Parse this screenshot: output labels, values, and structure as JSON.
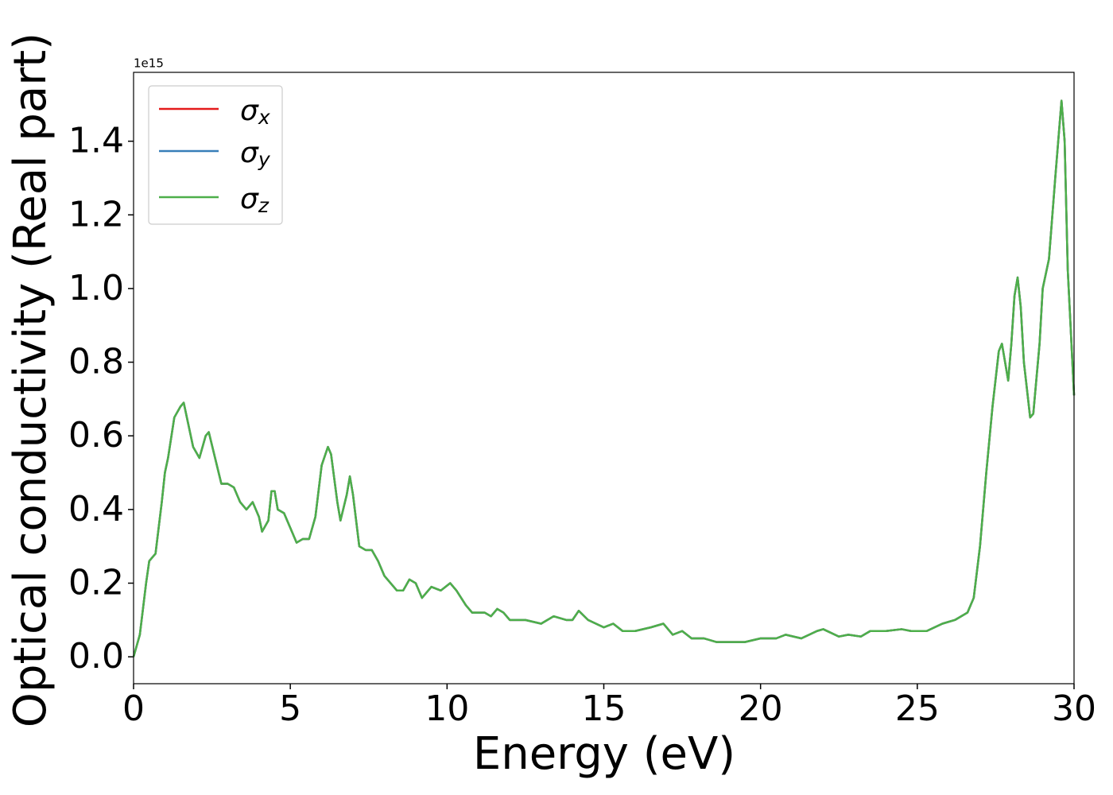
{
  "chart_data": {
    "type": "line",
    "xlabel": "Energy (eV)",
    "ylabel": "Optical conductivity (Real part)",
    "y_offset_label": "1e15",
    "xlim": [
      0,
      30
    ],
    "ylim": [
      -0.073,
      1.587
    ],
    "xticks": [
      0,
      5,
      10,
      15,
      20,
      25,
      30
    ],
    "yticks": [
      {
        "value": 0,
        "label": "0.0"
      },
      0.2,
      0.4,
      0.6,
      0.8,
      {
        "value": 1,
        "label": "1.0"
      },
      1.2,
      1.4
    ],
    "legend": "upper left",
    "x": [
      0,
      0.2,
      0.4,
      0.5,
      0.7,
      0.9,
      1.0,
      1.1,
      1.3,
      1.5,
      1.6,
      1.7,
      1.9,
      2.1,
      2.3,
      2.4,
      2.6,
      2.8,
      3.0,
      3.2,
      3.4,
      3.6,
      3.8,
      4.0,
      4.1,
      4.3,
      4.4,
      4.5,
      4.6,
      4.8,
      5.0,
      5.2,
      5.4,
      5.6,
      5.8,
      6.0,
      6.2,
      6.3,
      6.5,
      6.6,
      6.8,
      6.9,
      7.0,
      7.2,
      7.4,
      7.6,
      7.8,
      8.0,
      8.4,
      8.6,
      8.8,
      9.0,
      9.2,
      9.5,
      9.8,
      10.1,
      10.3,
      10.6,
      10.8,
      11.2,
      11.4,
      11.6,
      11.8,
      12.0,
      12.5,
      13.0,
      13.4,
      13.8,
      14.0,
      14.2,
      14.5,
      15.0,
      15.3,
      15.6,
      16.0,
      16.5,
      16.9,
      17.2,
      17.5,
      17.8,
      18.2,
      18.6,
      19.2,
      19.5,
      20.0,
      20.5,
      20.8,
      21.3,
      21.8,
      22.0,
      22.5,
      22.8,
      23.2,
      23.5,
      24.0,
      24.5,
      24.8,
      25.3,
      25.8,
      26.2,
      26.6,
      26.8,
      27.0,
      27.2,
      27.4,
      27.6,
      27.7,
      27.8,
      27.9,
      28.0,
      28.1,
      28.2,
      28.3,
      28.4,
      28.6,
      28.7,
      28.9,
      29.0,
      29.2,
      29.4,
      29.6,
      29.7,
      29.8,
      30.0
    ],
    "series": [
      {
        "name": "σx",
        "color": "#e41a1c",
        "values": [
          0,
          0.06,
          0.2,
          0.26,
          0.28,
          0.42,
          0.5,
          0.54,
          0.65,
          0.68,
          0.69,
          0.65,
          0.57,
          0.54,
          0.6,
          0.61,
          0.54,
          0.47,
          0.47,
          0.46,
          0.42,
          0.4,
          0.42,
          0.38,
          0.34,
          0.37,
          0.45,
          0.45,
          0.4,
          0.39,
          0.35,
          0.31,
          0.32,
          0.32,
          0.38,
          0.52,
          0.57,
          0.55,
          0.42,
          0.37,
          0.44,
          0.49,
          0.44,
          0.3,
          0.29,
          0.29,
          0.26,
          0.22,
          0.18,
          0.18,
          0.21,
          0.2,
          0.16,
          0.19,
          0.18,
          0.2,
          0.18,
          0.14,
          0.12,
          0.12,
          0.11,
          0.13,
          0.12,
          0.1,
          0.1,
          0.09,
          0.11,
          0.1,
          0.1,
          0.125,
          0.1,
          0.08,
          0.09,
          0.07,
          0.07,
          0.08,
          0.09,
          0.06,
          0.07,
          0.05,
          0.05,
          0.04,
          0.04,
          0.04,
          0.05,
          0.05,
          0.06,
          0.05,
          0.07,
          0.075,
          0.055,
          0.06,
          0.055,
          0.07,
          0.07,
          0.075,
          0.07,
          0.07,
          0.09,
          0.1,
          0.12,
          0.16,
          0.3,
          0.5,
          0.68,
          0.83,
          0.85,
          0.8,
          0.75,
          0.85,
          0.98,
          1.03,
          0.95,
          0.8,
          0.65,
          0.66,
          0.85,
          1.0,
          1.08,
          1.3,
          1.51,
          1.4,
          1.05,
          0.71
        ]
      },
      {
        "name": "σy",
        "color": "#377eb8",
        "values": [
          0,
          0.06,
          0.2,
          0.26,
          0.28,
          0.42,
          0.5,
          0.54,
          0.65,
          0.68,
          0.69,
          0.65,
          0.57,
          0.54,
          0.6,
          0.61,
          0.54,
          0.47,
          0.47,
          0.46,
          0.42,
          0.4,
          0.42,
          0.38,
          0.34,
          0.37,
          0.45,
          0.45,
          0.4,
          0.39,
          0.35,
          0.31,
          0.32,
          0.32,
          0.38,
          0.52,
          0.57,
          0.55,
          0.42,
          0.37,
          0.44,
          0.49,
          0.44,
          0.3,
          0.29,
          0.29,
          0.26,
          0.22,
          0.18,
          0.18,
          0.21,
          0.2,
          0.16,
          0.19,
          0.18,
          0.2,
          0.18,
          0.14,
          0.12,
          0.12,
          0.11,
          0.13,
          0.12,
          0.1,
          0.1,
          0.09,
          0.11,
          0.1,
          0.1,
          0.125,
          0.1,
          0.08,
          0.09,
          0.07,
          0.07,
          0.08,
          0.09,
          0.06,
          0.07,
          0.05,
          0.05,
          0.04,
          0.04,
          0.04,
          0.05,
          0.05,
          0.06,
          0.05,
          0.07,
          0.075,
          0.055,
          0.06,
          0.055,
          0.07,
          0.07,
          0.075,
          0.07,
          0.07,
          0.09,
          0.1,
          0.12,
          0.16,
          0.3,
          0.5,
          0.68,
          0.83,
          0.85,
          0.8,
          0.75,
          0.85,
          0.98,
          1.03,
          0.95,
          0.8,
          0.65,
          0.66,
          0.85,
          1.0,
          1.08,
          1.3,
          1.51,
          1.4,
          1.05,
          0.71
        ]
      },
      {
        "name": "σz",
        "color": "#4daf4a",
        "values": [
          0,
          0.06,
          0.2,
          0.26,
          0.28,
          0.42,
          0.5,
          0.54,
          0.65,
          0.68,
          0.69,
          0.65,
          0.57,
          0.54,
          0.6,
          0.61,
          0.54,
          0.47,
          0.47,
          0.46,
          0.42,
          0.4,
          0.42,
          0.38,
          0.34,
          0.37,
          0.45,
          0.45,
          0.4,
          0.39,
          0.35,
          0.31,
          0.32,
          0.32,
          0.38,
          0.52,
          0.57,
          0.55,
          0.42,
          0.37,
          0.44,
          0.49,
          0.44,
          0.3,
          0.29,
          0.29,
          0.26,
          0.22,
          0.18,
          0.18,
          0.21,
          0.2,
          0.16,
          0.19,
          0.18,
          0.2,
          0.18,
          0.14,
          0.12,
          0.12,
          0.11,
          0.13,
          0.12,
          0.1,
          0.1,
          0.09,
          0.11,
          0.1,
          0.1,
          0.125,
          0.1,
          0.08,
          0.09,
          0.07,
          0.07,
          0.08,
          0.09,
          0.06,
          0.07,
          0.05,
          0.05,
          0.04,
          0.04,
          0.04,
          0.05,
          0.05,
          0.06,
          0.05,
          0.07,
          0.075,
          0.055,
          0.06,
          0.055,
          0.07,
          0.07,
          0.075,
          0.07,
          0.07,
          0.09,
          0.1,
          0.12,
          0.16,
          0.3,
          0.5,
          0.68,
          0.83,
          0.85,
          0.8,
          0.75,
          0.85,
          0.98,
          1.03,
          0.95,
          0.8,
          0.65,
          0.66,
          0.85,
          1.0,
          1.08,
          1.3,
          1.51,
          1.4,
          1.05,
          0.71
        ]
      }
    ]
  }
}
